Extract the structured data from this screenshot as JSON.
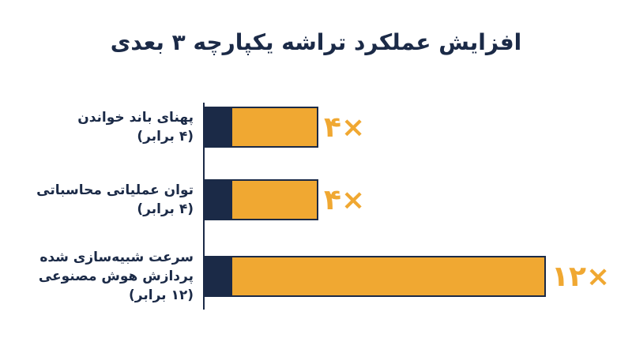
{
  "chart_data": {
    "type": "bar",
    "title": "افزایش عملکرد تراشه یکپارچه ۳ بعدی",
    "categories": [
      [
        "پهنای باند خواندن",
        "(۴ برابر)"
      ],
      [
        "توان عملیاتی محاسباتی",
        "(۴ برابر)"
      ],
      [
        "سرعت شبیه‌سازی شده",
        "پردازش هوش مصنوعی",
        "(۱۲ برابر)"
      ]
    ],
    "values": [
      4,
      4,
      12
    ],
    "value_labels": [
      "۴×",
      "۴×",
      "۱۲×"
    ],
    "color": "#f0a832",
    "base": {
      "values": [
        1,
        1,
        1
      ],
      "color": "#1b2a47"
    }
  }
}
